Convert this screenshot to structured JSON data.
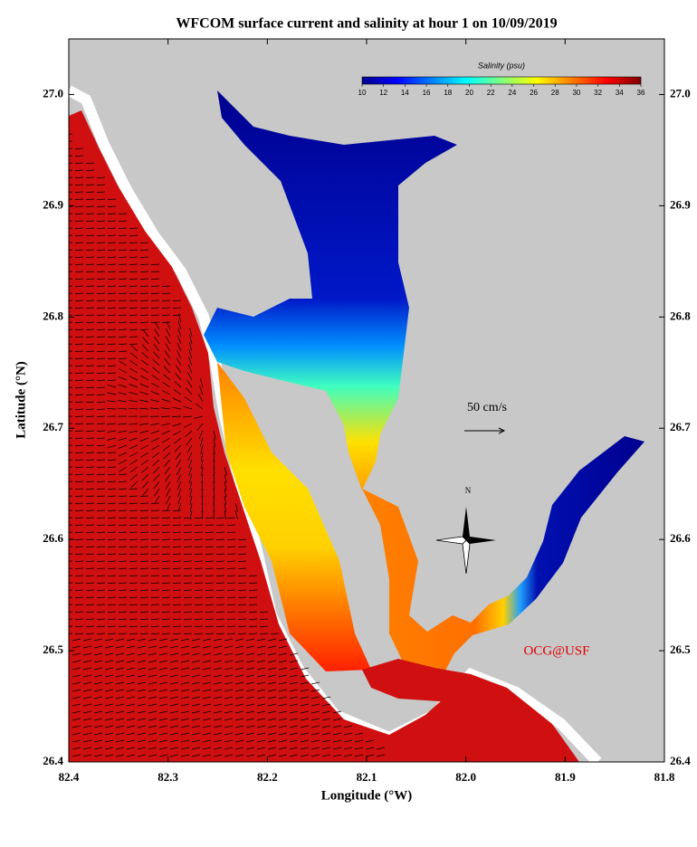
{
  "title": "WFCOM surface current and salinity at hour 1 on 10/09/2019",
  "x_axis": {
    "label": "Longitude (°W)",
    "lim": [
      82.4,
      81.8
    ],
    "ticks": [
      82.4,
      82.3,
      82.2,
      82.1,
      {
        "value": 82,
        "label": "82.0"
      },
      81.9,
      81.8
    ]
  },
  "y_axis": {
    "label": "Latitude (°N)",
    "lim": [
      26.4,
      27.05
    ],
    "ticks": [
      26.4,
      26.5,
      26.6,
      26.7,
      26.8,
      26.9,
      {
        "value": 27,
        "label": "27.0"
      }
    ]
  },
  "colorbar": {
    "title": "Salinity (psu)",
    "colormap": "jet",
    "lim": [
      10,
      36
    ],
    "ticks": [
      10,
      12,
      14,
      16,
      18,
      20,
      22,
      24,
      26,
      28,
      30,
      32,
      34,
      36
    ]
  },
  "scale_label": "50 cm/s",
  "north_label": "N",
  "credit": "OCG@USF"
}
